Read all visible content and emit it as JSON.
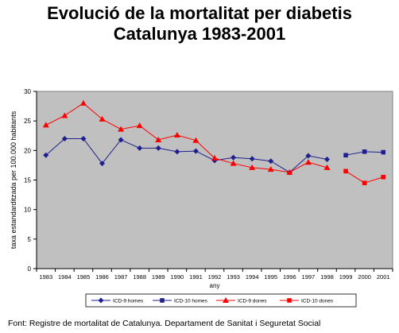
{
  "title_lines": [
    "Evolució de la mortalitat per diabetis",
    "Catalunya 1983-2001"
  ],
  "source": "Font: Registre de mortalitat de Catalunya. Departament de Sanitat i Seguretat Social",
  "colors": {
    "plot_background": "#c0c0c0",
    "chart_background": "#ffffff",
    "blue": "#1f1f8f",
    "red": "#ff0000"
  },
  "chart_data": {
    "type": "line",
    "x": [
      "1983",
      "1984",
      "1985",
      "1986",
      "1987",
      "1988",
      "1989",
      "1990",
      "1991",
      "1992",
      "1993",
      "1994",
      "1995",
      "1996",
      "1997",
      "1998",
      "1999",
      "2000",
      "2001"
    ],
    "xlabel": "any",
    "ylabel": "taxa estandarditzada per 100.000 habitants",
    "ylim": [
      0,
      30
    ],
    "yticks": [
      "0",
      "5",
      "10",
      "15",
      "20",
      "25",
      "30"
    ],
    "grid": false,
    "legend_position": "bottom",
    "series": [
      {
        "name": "ICD-9 homes",
        "color": "#1f1f8f",
        "marker": "diamond",
        "values": [
          19.2,
          22.0,
          22.0,
          17.8,
          21.8,
          20.4,
          20.4,
          19.8,
          19.9,
          18.3,
          18.8,
          18.6,
          18.2,
          16.3,
          19.1,
          18.5,
          null,
          null,
          null
        ]
      },
      {
        "name": "ICD-10 homes",
        "color": "#1f1f8f",
        "marker": "square",
        "values": [
          null,
          null,
          null,
          null,
          null,
          null,
          null,
          null,
          null,
          null,
          null,
          null,
          null,
          null,
          null,
          null,
          19.2,
          19.8,
          19.7
        ]
      },
      {
        "name": "ICD-9 dones",
        "color": "#ff0000",
        "marker": "triangle",
        "values": [
          24.3,
          25.9,
          28.0,
          25.3,
          23.6,
          24.2,
          21.8,
          22.6,
          21.7,
          18.7,
          17.8,
          17.1,
          16.8,
          16.3,
          18.0,
          17.1,
          null,
          null,
          null
        ]
      },
      {
        "name": "ICD-10 dones",
        "color": "#ff0000",
        "marker": "square",
        "values": [
          null,
          null,
          null,
          null,
          null,
          null,
          null,
          null,
          null,
          null,
          null,
          null,
          null,
          null,
          null,
          null,
          16.5,
          14.5,
          15.5
        ]
      }
    ]
  }
}
